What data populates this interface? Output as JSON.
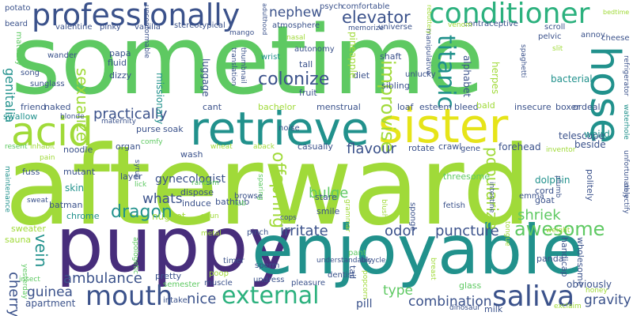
{
  "palette": {
    "green": "#5ec962",
    "lime": "#a0da39",
    "teal": "#21918c",
    "blue": "#3b528b",
    "purple": "#472d7b",
    "yellow": "#e6e419",
    "sea": "#2cb17e"
  },
  "words": [
    {
      "text": "afterward",
      "color": "lime"
    },
    {
      "text": "sometime",
      "color": "green"
    },
    {
      "text": "puppy",
      "color": "purple"
    },
    {
      "text": "enjoyable",
      "color": "teal"
    },
    {
      "text": "retrieve",
      "color": "teal"
    },
    {
      "text": "sister",
      "color": "yellow"
    },
    {
      "text": "professionally",
      "color": "blue"
    },
    {
      "text": "conditioner",
      "color": "sea"
    },
    {
      "text": "hose",
      "color": "teal"
    },
    {
      "text": "acid",
      "color": "lime"
    },
    {
      "text": "saliva",
      "color": "blue"
    },
    {
      "text": "mouth",
      "color": "blue"
    },
    {
      "text": "external",
      "color": "sea"
    },
    {
      "text": "ambulance",
      "color": "blue"
    },
    {
      "text": "awesome",
      "color": "green"
    },
    {
      "text": "combination",
      "color": "blue"
    },
    {
      "text": "titanic",
      "color": "teal"
    },
    {
      "text": "colonize",
      "color": "blue"
    },
    {
      "text": "practically",
      "color": "blue"
    },
    {
      "text": "elevator",
      "color": "blue"
    },
    {
      "text": "nephew",
      "color": "blue"
    },
    {
      "text": "improvise",
      "color": "lime"
    },
    {
      "text": "dragon",
      "color": "teal"
    },
    {
      "text": "irritate",
      "color": "blue"
    },
    {
      "text": "puncture",
      "color": "blue"
    },
    {
      "text": "odor",
      "color": "blue"
    },
    {
      "text": "shriek",
      "color": "green"
    },
    {
      "text": "bulge",
      "color": "green"
    },
    {
      "text": "flavour",
      "color": "blue"
    },
    {
      "text": "popularize",
      "color": "lime"
    },
    {
      "text": "offspring",
      "color": "lime"
    },
    {
      "text": "guinea",
      "color": "blue"
    },
    {
      "text": "nice",
      "color": "blue"
    },
    {
      "text": "type",
      "color": "green"
    },
    {
      "text": "gravity",
      "color": "blue"
    },
    {
      "text": "whats",
      "color": "blue"
    },
    {
      "text": "sexualize",
      "color": "lime"
    },
    {
      "text": "telescope",
      "color": "blue"
    },
    {
      "text": "vein",
      "color": "teal"
    },
    {
      "text": "genitalia",
      "color": "teal"
    },
    {
      "text": "cherry",
      "color": "blue"
    },
    {
      "text": "apartment",
      "color": "blue"
    },
    {
      "text": "pill",
      "color": "blue"
    },
    {
      "text": "gynecologist",
      "color": "blue"
    },
    {
      "text": "bacterial",
      "color": "teal"
    },
    {
      "text": "beside",
      "color": "blue"
    },
    {
      "text": "weird",
      "color": "teal"
    },
    {
      "text": "alphabet",
      "color": "blue"
    },
    {
      "text": "herpes",
      "color": "lime"
    },
    {
      "text": "forehead",
      "color": "blue"
    },
    {
      "text": "obviously",
      "color": "blue"
    },
    {
      "text": "papa",
      "color": "blue"
    },
    {
      "text": "fluid",
      "color": "blue"
    },
    {
      "text": "dizzy",
      "color": "blue"
    },
    {
      "text": "diet",
      "color": "blue"
    },
    {
      "text": "fruit",
      "color": "blue"
    },
    {
      "text": "tall",
      "color": "blue"
    },
    {
      "text": "shaft",
      "color": "blue"
    },
    {
      "text": "sibling",
      "color": "blue"
    },
    {
      "text": "menstrual",
      "color": "blue"
    },
    {
      "text": "loaf",
      "color": "blue"
    },
    {
      "text": "esteem",
      "color": "blue"
    },
    {
      "text": "bleed",
      "color": "blue"
    },
    {
      "text": "bald",
      "color": "lime"
    },
    {
      "text": "insecure",
      "color": "blue"
    },
    {
      "text": "boxer",
      "color": "blue"
    },
    {
      "text": "ordeal",
      "color": "blue"
    },
    {
      "text": "bachelor",
      "color": "lime"
    },
    {
      "text": "pineapple",
      "color": "lime"
    },
    {
      "text": "missionary",
      "color": "teal"
    },
    {
      "text": "luggage",
      "color": "blue"
    },
    {
      "text": "cant",
      "color": "blue"
    },
    {
      "text": "purse",
      "color": "blue"
    },
    {
      "text": "soak",
      "color": "blue"
    },
    {
      "text": "wash",
      "color": "blue"
    },
    {
      "text": "organ",
      "color": "blue"
    },
    {
      "text": "layer",
      "color": "blue"
    },
    {
      "text": "nugget",
      "color": "lime"
    },
    {
      "text": "dispose",
      "color": "blue"
    },
    {
      "text": "induce",
      "color": "blue"
    },
    {
      "text": "bathtub",
      "color": "blue"
    },
    {
      "text": "skin",
      "color": "teal"
    },
    {
      "text": "batman",
      "color": "blue"
    },
    {
      "text": "chrome",
      "color": "teal"
    },
    {
      "text": "sweater",
      "color": "lime"
    },
    {
      "text": "sauna",
      "color": "lime"
    },
    {
      "text": "fuss",
      "color": "blue"
    },
    {
      "text": "mutant",
      "color": "blue"
    },
    {
      "text": "noodle",
      "color": "blue"
    },
    {
      "text": "friend",
      "color": "blue"
    },
    {
      "text": "naked",
      "color": "blue"
    },
    {
      "text": "swallow",
      "color": "teal"
    },
    {
      "text": "sunglass",
      "color": "blue"
    },
    {
      "text": "song",
      "color": "blue"
    },
    {
      "text": "valentine",
      "color": "blue"
    },
    {
      "text": "pinky",
      "color": "blue"
    },
    {
      "text": "vanilla",
      "color": "blue"
    },
    {
      "text": "stereotypical",
      "color": "blue"
    },
    {
      "text": "atmosphere",
      "color": "blue"
    },
    {
      "text": "universe",
      "color": "blue"
    },
    {
      "text": "contraceptive",
      "color": "blue"
    },
    {
      "text": "scroll",
      "color": "blue"
    },
    {
      "text": "pelvic",
      "color": "blue"
    },
    {
      "text": "annoy",
      "color": "blue"
    },
    {
      "text": "cheese",
      "color": "blue"
    },
    {
      "text": "potato",
      "color": "blue"
    },
    {
      "text": "beard",
      "color": "blue"
    },
    {
      "text": "psych",
      "color": "blue"
    },
    {
      "text": "comfortable",
      "color": "blue"
    },
    {
      "text": "memorize",
      "color": "blue"
    },
    {
      "text": "autonomy",
      "color": "blue"
    },
    {
      "text": "wrist",
      "color": "teal"
    },
    {
      "text": "unlucky",
      "color": "blue"
    },
    {
      "text": "dolphin",
      "color": "teal"
    },
    {
      "text": "cord",
      "color": "blue"
    },
    {
      "text": "goat",
      "color": "blue"
    },
    {
      "text": "emma",
      "color": "blue"
    },
    {
      "text": "politely",
      "color": "blue"
    },
    {
      "text": "panda",
      "color": "blue"
    },
    {
      "text": "handicap",
      "color": "blue"
    },
    {
      "text": "wholesome",
      "color": "blue"
    },
    {
      "text": "milk",
      "color": "blue"
    },
    {
      "text": "glass",
      "color": "green"
    },
    {
      "text": "dentist",
      "color": "blue"
    },
    {
      "text": "smile",
      "color": "blue"
    },
    {
      "text": "stare",
      "color": "blue"
    },
    {
      "text": "browse",
      "color": "blue"
    },
    {
      "text": "pinch",
      "color": "blue"
    },
    {
      "text": "pretty",
      "color": "blue"
    },
    {
      "text": "poop",
      "color": "lime"
    },
    {
      "text": "timer",
      "color": "blue"
    },
    {
      "text": "muscle",
      "color": "blue"
    },
    {
      "text": "semester",
      "color": "green"
    },
    {
      "text": "intake",
      "color": "blue"
    },
    {
      "text": "undress",
      "color": "blue"
    },
    {
      "text": "pleasure",
      "color": "blue"
    },
    {
      "text": "sperm",
      "color": "blue"
    },
    {
      "text": "tail",
      "color": "blue"
    },
    {
      "text": "pant",
      "color": "green"
    },
    {
      "text": "insect",
      "color": "green"
    },
    {
      "text": "yesterday",
      "color": "green"
    },
    {
      "text": "casually",
      "color": "blue"
    },
    {
      "text": "noise",
      "color": "blue"
    },
    {
      "text": "gene",
      "color": "blue"
    },
    {
      "text": "crawl",
      "color": "blue"
    },
    {
      "text": "rotate",
      "color": "blue"
    },
    {
      "text": "threesome",
      "color": "green"
    },
    {
      "text": "fetish",
      "color": "blue"
    },
    {
      "text": "sponge",
      "color": "blue"
    },
    {
      "text": "maturity",
      "color": "green"
    },
    {
      "text": "wander",
      "color": "blue"
    },
    {
      "text": "maintenance",
      "color": "teal"
    },
    {
      "text": "sweat",
      "color": "blue"
    },
    {
      "text": "inhabit",
      "color": "lime"
    },
    {
      "text": "resent",
      "color": "green"
    },
    {
      "text": "comfy",
      "color": "green"
    },
    {
      "text": "lick",
      "color": "green"
    },
    {
      "text": "random",
      "color": "green"
    },
    {
      "text": "maternity",
      "color": "blue"
    },
    {
      "text": "syrup",
      "color": "blue"
    },
    {
      "text": "apologetic",
      "color": "green"
    },
    {
      "text": "blonde",
      "color": "blue"
    },
    {
      "text": "pain",
      "color": "lime"
    },
    {
      "text": "nasal",
      "color": "lime"
    },
    {
      "text": "mango",
      "color": "blue"
    },
    {
      "text": "adulthood",
      "color": "blue"
    },
    {
      "text": "manipulative",
      "color": "blue"
    },
    {
      "text": "rebuttery",
      "color": "lime"
    },
    {
      "text": "venom",
      "color": "lime"
    },
    {
      "text": "slit",
      "color": "lime"
    },
    {
      "text": "spaghetti",
      "color": "blue"
    },
    {
      "text": "refrigerator",
      "color": "blue"
    },
    {
      "text": "bedtime",
      "color": "lime"
    },
    {
      "text": "inventor",
      "color": "lime"
    },
    {
      "text": "waterhole",
      "color": "teal"
    },
    {
      "text": "unfortunately",
      "color": "blue"
    },
    {
      "text": "objectify",
      "color": "blue"
    },
    {
      "text": "plumb",
      "color": "blue"
    },
    {
      "text": "intestine",
      "color": "blue"
    },
    {
      "text": "exclaim",
      "color": "lime"
    },
    {
      "text": "honey",
      "color": "lime"
    },
    {
      "text": "weight",
      "color": "lime"
    },
    {
      "text": "dinosaur",
      "color": "blue"
    },
    {
      "text": "breast",
      "color": "lime"
    },
    {
      "text": "understandably",
      "color": "blue"
    },
    {
      "text": "bicycle",
      "color": "blue"
    },
    {
      "text": "popcorn",
      "color": "lime"
    },
    {
      "text": "blush",
      "color": "lime"
    },
    {
      "text": "grammar",
      "color": "lime"
    },
    {
      "text": "tongue",
      "color": "lime"
    },
    {
      "text": "unconformable",
      "color": "blue"
    },
    {
      "text": "translation",
      "color": "blue"
    },
    {
      "text": "thumbnail",
      "color": "blue"
    },
    {
      "text": "sparing",
      "color": "green"
    },
    {
      "text": "cops",
      "color": "blue"
    },
    {
      "text": "noun",
      "color": "lime"
    },
    {
      "text": "metal",
      "color": "lime"
    },
    {
      "text": "aback",
      "color": "lime"
    },
    {
      "text": "wheat",
      "color": "lime"
    },
    {
      "text": "tub",
      "color": "green"
    }
  ]
}
